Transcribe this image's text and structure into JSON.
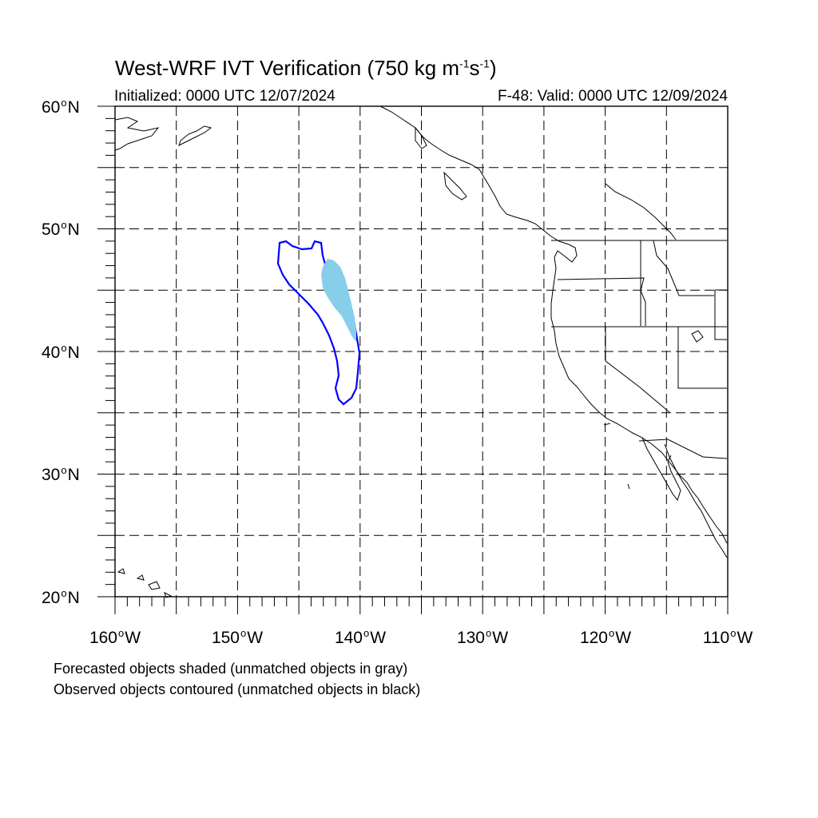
{
  "title": {
    "text": "West-WRF IVT Verification (750 kg m",
    "sup1": "-1",
    "mid": "s",
    "sup2": "-1",
    "end": ")"
  },
  "init_label": "Initialized: 0000 UTC 12/07/2024",
  "valid_label": "F-48: Valid: 0000 UTC 12/09/2024",
  "lat_labels": [
    {
      "deg": "60",
      "hemi": "N"
    },
    {
      "deg": "50",
      "hemi": "N"
    },
    {
      "deg": "40",
      "hemi": "N"
    },
    {
      "deg": "30",
      "hemi": "N"
    },
    {
      "deg": "20",
      "hemi": "N"
    }
  ],
  "lon_labels": [
    {
      "deg": "160",
      "hemi": "W"
    },
    {
      "deg": "150",
      "hemi": "W"
    },
    {
      "deg": "140",
      "hemi": "W"
    },
    {
      "deg": "130",
      "hemi": "W"
    },
    {
      "deg": "120",
      "hemi": "W"
    },
    {
      "deg": "110",
      "hemi": "W"
    }
  ],
  "notes": [
    "Forecasted objects shaded (unmatched objects in gray)",
    "Observed objects contoured (unmatched objects in black)"
  ],
  "map_extent": {
    "lon": [
      -160,
      -110
    ],
    "lat": [
      20,
      60
    ]
  },
  "colors": {
    "forecast_object": "#87ceeb",
    "observed_object": "#0000ff",
    "coastline": "#000000",
    "grid": "#000000"
  }
}
